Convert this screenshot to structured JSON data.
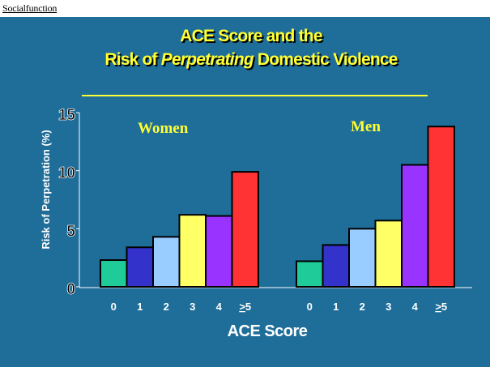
{
  "header": {
    "label": "Socialfunction"
  },
  "title": {
    "line1": "ACE Score and the",
    "line2_prefix": "Risk of ",
    "line2_emph": "Perpetrating",
    "line2_suffix": " Domestic Violence"
  },
  "chart_data": {
    "type": "bar",
    "title": "ACE Score and the Risk of Perpetrating Domestic Violence",
    "xlabel": "ACE Score",
    "ylabel": "Risk of Perpetration (%)",
    "ylim": [
      0,
      15
    ],
    "yticks": [
      "0",
      "5",
      "10",
      "15"
    ],
    "categories": [
      "0",
      "1",
      "2",
      "3",
      "4",
      ">5"
    ],
    "bar_colors": [
      "#1fcc99",
      "#3333cc",
      "#99ccff",
      "#ffff66",
      "#9933ff",
      "#ff3333"
    ],
    "series": [
      {
        "name": "Women",
        "values": [
          2.3,
          3.4,
          4.3,
          6.2,
          6.1,
          9.9
        ]
      },
      {
        "name": "Men",
        "values": [
          2.2,
          3.6,
          5.0,
          5.7,
          10.5,
          13.8
        ]
      }
    ],
    "grid": false
  }
}
